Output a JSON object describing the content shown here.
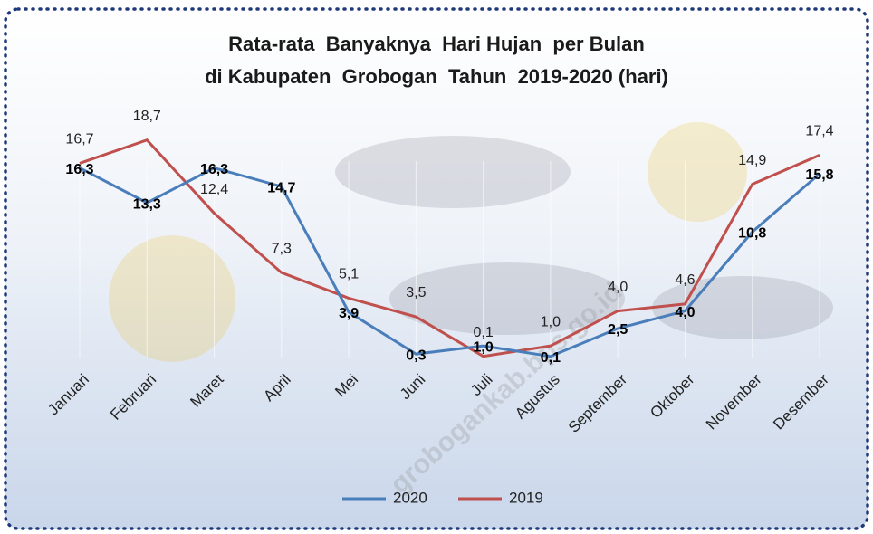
{
  "chart_data": {
    "type": "line",
    "title": [
      "Rata-rata  Banyaknya  Hari Hujan  per Bulan",
      "di Kabupaten  Grobogan  Tahun  2019-2020 (hari)"
    ],
    "categories": [
      "Januari",
      "Februari",
      "Maret",
      "April",
      "Mei",
      "Juni",
      "Juli",
      "Agustus",
      "September",
      "Oktober",
      "November",
      "Desember"
    ],
    "series": [
      {
        "name": "2020",
        "color": "#4a7ebb",
        "values": [
          16.3,
          13.3,
          16.3,
          14.7,
          3.9,
          0.3,
          1.0,
          0.1,
          2.5,
          4.0,
          10.8,
          15.8
        ],
        "value_labels": [
          "16,3",
          "13,3",
          "16,3",
          "14,7",
          "3,9",
          "0,3",
          "1,0",
          "0,1",
          "2,5",
          "4,0",
          "10,8",
          "15,8"
        ]
      },
      {
        "name": "2019",
        "color": "#c0504d",
        "values": [
          16.7,
          18.7,
          12.4,
          7.3,
          5.1,
          3.5,
          0.1,
          1.0,
          4.0,
          4.6,
          14.9,
          17.4
        ],
        "value_labels": [
          "16,7",
          "18,7",
          "12,4",
          "7,3",
          "5,1",
          "3,5",
          "0,1",
          "1,0",
          "4,0",
          "4,6",
          "14,9",
          "17,4"
        ]
      }
    ],
    "ylim": [
      0,
      20
    ],
    "watermark": "grobogankab.bps.go.id",
    "legend": "bottom"
  }
}
